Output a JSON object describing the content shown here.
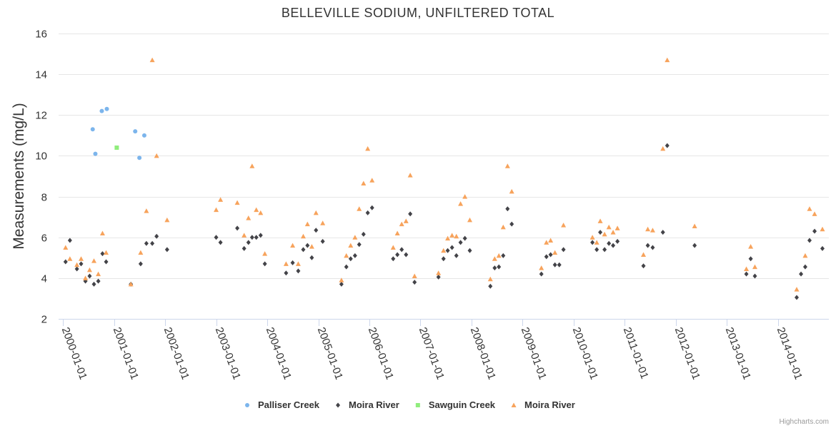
{
  "credits": "Highcharts.com",
  "chart_data": {
    "type": "scatter",
    "title": "BELLEVILLE SODIUM, UNFILTERED TOTAL",
    "ylabel": "Measurements (mg/L)",
    "xlabel": "",
    "ylim": [
      2,
      16
    ],
    "yticks": [
      2,
      4,
      6,
      8,
      10,
      12,
      14,
      16
    ],
    "xlim": [
      "1999-12-01",
      "2014-12-31"
    ],
    "xticks": [
      "2000-01-01",
      "2001-01-01",
      "2002-01-01",
      "2003-01-01",
      "2004-01-01",
      "2005-01-01",
      "2006-01-01",
      "2007-01-01",
      "2008-01-01",
      "2009-01-01",
      "2010-01-01",
      "2011-01-01",
      "2012-01-01",
      "2013-01-01",
      "2014-01-01"
    ],
    "grid": true,
    "legend_position": "bottom-center",
    "series": [
      {
        "name": "Palliser Creek",
        "color": "#7cb5ec",
        "marker": "circle",
        "points": [
          [
            "2000-08-01",
            11.3
          ],
          [
            "2000-08-20",
            10.1
          ],
          [
            "2000-10-05",
            12.2
          ],
          [
            "2000-11-10",
            12.3
          ],
          [
            "2001-06-01",
            11.2
          ],
          [
            "2001-07-01",
            9.9
          ],
          [
            "2001-08-05",
            11.0
          ]
        ]
      },
      {
        "name": "Moira River",
        "color": "#434348",
        "marker": "diamond",
        "points": [
          [
            "2000-01-20",
            4.8
          ],
          [
            "2000-02-20",
            5.85
          ],
          [
            "2000-04-10",
            4.45
          ],
          [
            "2000-05-10",
            4.7
          ],
          [
            "2000-06-10",
            3.85
          ],
          [
            "2000-07-10",
            4.1
          ],
          [
            "2000-08-10",
            3.7
          ],
          [
            "2000-09-10",
            3.85
          ],
          [
            "2000-10-10",
            5.2
          ],
          [
            "2000-11-05",
            4.8
          ],
          [
            "2001-05-01",
            3.7
          ],
          [
            "2001-07-10",
            4.7
          ],
          [
            "2001-08-20",
            5.7
          ],
          [
            "2001-10-01",
            5.7
          ],
          [
            "2001-11-01",
            6.05
          ],
          [
            "2002-01-15",
            5.4
          ],
          [
            "2003-01-01",
            6.0
          ],
          [
            "2003-02-01",
            5.75
          ],
          [
            "2003-06-01",
            6.45
          ],
          [
            "2003-07-20",
            5.45
          ],
          [
            "2003-08-20",
            5.75
          ],
          [
            "2003-09-15",
            6.0
          ],
          [
            "2003-10-15",
            6.0
          ],
          [
            "2003-11-15",
            6.1
          ],
          [
            "2003-12-15",
            4.7
          ],
          [
            "2004-05-15",
            4.25
          ],
          [
            "2004-07-01",
            4.75
          ],
          [
            "2004-08-10",
            4.35
          ],
          [
            "2004-09-15",
            5.4
          ],
          [
            "2004-10-15",
            5.6
          ],
          [
            "2004-11-15",
            5.0
          ],
          [
            "2004-12-15",
            6.35
          ],
          [
            "2005-02-01",
            5.8
          ],
          [
            "2005-06-15",
            3.7
          ],
          [
            "2005-07-20",
            4.55
          ],
          [
            "2005-08-20",
            4.95
          ],
          [
            "2005-09-20",
            5.1
          ],
          [
            "2005-10-20",
            5.65
          ],
          [
            "2005-11-20",
            6.15
          ],
          [
            "2005-12-20",
            7.2
          ],
          [
            "2006-01-20",
            7.45
          ],
          [
            "2006-06-20",
            4.95
          ],
          [
            "2006-07-20",
            5.15
          ],
          [
            "2006-08-20",
            5.4
          ],
          [
            "2006-09-20",
            5.15
          ],
          [
            "2006-10-20",
            7.15
          ],
          [
            "2006-11-20",
            3.8
          ],
          [
            "2007-05-10",
            4.05
          ],
          [
            "2007-06-15",
            4.95
          ],
          [
            "2007-07-15",
            5.35
          ],
          [
            "2007-08-15",
            5.5
          ],
          [
            "2007-09-15",
            5.1
          ],
          [
            "2007-10-15",
            5.75
          ],
          [
            "2007-11-15",
            5.95
          ],
          [
            "2007-12-20",
            5.35
          ],
          [
            "2008-05-15",
            3.6
          ],
          [
            "2008-06-15",
            4.5
          ],
          [
            "2008-07-15",
            4.55
          ],
          [
            "2008-08-15",
            5.1
          ],
          [
            "2008-09-15",
            7.4
          ],
          [
            "2008-10-15",
            6.65
          ],
          [
            "2009-05-15",
            4.2
          ],
          [
            "2009-06-20",
            5.05
          ],
          [
            "2009-07-20",
            5.15
          ],
          [
            "2009-08-20",
            4.65
          ],
          [
            "2009-09-20",
            4.65
          ],
          [
            "2009-10-20",
            5.4
          ],
          [
            "2010-05-15",
            5.75
          ],
          [
            "2010-06-15",
            5.4
          ],
          [
            "2010-07-10",
            6.25
          ],
          [
            "2010-08-10",
            5.4
          ],
          [
            "2010-09-10",
            5.7
          ],
          [
            "2010-10-10",
            5.6
          ],
          [
            "2010-11-10",
            5.8
          ],
          [
            "2011-05-15",
            4.6
          ],
          [
            "2011-06-15",
            5.6
          ],
          [
            "2011-07-20",
            5.5
          ],
          [
            "2011-10-01",
            6.25
          ],
          [
            "2011-11-01",
            10.5
          ],
          [
            "2012-05-15",
            5.6
          ],
          [
            "2013-05-20",
            4.2
          ],
          [
            "2013-06-20",
            4.95
          ],
          [
            "2013-07-20",
            4.1
          ],
          [
            "2014-05-15",
            3.05
          ],
          [
            "2014-06-15",
            4.2
          ],
          [
            "2014-07-15",
            4.55
          ],
          [
            "2014-08-15",
            5.85
          ],
          [
            "2014-09-20",
            6.3
          ],
          [
            "2014-11-15",
            5.45
          ]
        ]
      },
      {
        "name": "Sawguin Creek",
        "color": "#90ed7d",
        "marker": "square",
        "points": [
          [
            "2001-01-20",
            10.4
          ]
        ]
      },
      {
        "name": "Moira River",
        "color": "#f7a35c",
        "marker": "triangle",
        "points": [
          [
            "2000-01-20",
            5.5
          ],
          [
            "2000-02-20",
            4.95
          ],
          [
            "2000-04-10",
            4.65
          ],
          [
            "2000-05-10",
            4.95
          ],
          [
            "2000-06-10",
            4.0
          ],
          [
            "2000-07-10",
            4.4
          ],
          [
            "2000-08-10",
            4.85
          ],
          [
            "2000-09-10",
            4.2
          ],
          [
            "2000-10-10",
            6.2
          ],
          [
            "2000-11-05",
            5.25
          ],
          [
            "2001-05-01",
            3.7
          ],
          [
            "2001-07-10",
            5.25
          ],
          [
            "2001-08-20",
            7.3
          ],
          [
            "2001-10-01",
            14.7
          ],
          [
            "2001-11-01",
            10.0
          ],
          [
            "2002-01-15",
            6.85
          ],
          [
            "2003-01-01",
            7.35
          ],
          [
            "2003-02-01",
            7.85
          ],
          [
            "2003-06-01",
            7.7
          ],
          [
            "2003-07-20",
            6.1
          ],
          [
            "2003-08-20",
            6.95
          ],
          [
            "2003-09-15",
            9.5
          ],
          [
            "2003-10-15",
            7.35
          ],
          [
            "2003-11-15",
            7.2
          ],
          [
            "2003-12-15",
            5.2
          ],
          [
            "2004-05-15",
            4.7
          ],
          [
            "2004-07-01",
            5.6
          ],
          [
            "2004-08-10",
            4.7
          ],
          [
            "2004-09-15",
            6.05
          ],
          [
            "2004-10-15",
            6.65
          ],
          [
            "2004-11-15",
            5.55
          ],
          [
            "2004-12-15",
            7.2
          ],
          [
            "2005-02-01",
            6.7
          ],
          [
            "2005-06-15",
            3.9
          ],
          [
            "2005-07-20",
            5.1
          ],
          [
            "2005-08-20",
            5.6
          ],
          [
            "2005-09-20",
            6.0
          ],
          [
            "2005-10-20",
            7.4
          ],
          [
            "2005-11-20",
            8.65
          ],
          [
            "2005-12-20",
            10.35
          ],
          [
            "2006-01-20",
            8.8
          ],
          [
            "2006-06-20",
            5.5
          ],
          [
            "2006-07-20",
            6.2
          ],
          [
            "2006-08-20",
            6.65
          ],
          [
            "2006-09-20",
            6.8
          ],
          [
            "2006-10-20",
            9.05
          ],
          [
            "2006-11-20",
            4.1
          ],
          [
            "2007-05-10",
            4.25
          ],
          [
            "2007-06-15",
            5.35
          ],
          [
            "2007-07-15",
            5.95
          ],
          [
            "2007-08-15",
            6.1
          ],
          [
            "2007-09-15",
            6.05
          ],
          [
            "2007-10-15",
            7.65
          ],
          [
            "2007-11-15",
            8.0
          ],
          [
            "2007-12-20",
            6.85
          ],
          [
            "2008-05-15",
            3.95
          ],
          [
            "2008-06-15",
            4.95
          ],
          [
            "2008-07-15",
            5.1
          ],
          [
            "2008-08-15",
            6.5
          ],
          [
            "2008-09-15",
            9.5
          ],
          [
            "2008-10-15",
            8.25
          ],
          [
            "2009-05-15",
            4.5
          ],
          [
            "2009-06-20",
            5.75
          ],
          [
            "2009-07-20",
            5.85
          ],
          [
            "2009-08-20",
            5.25
          ],
          [
            "2009-10-20",
            6.6
          ],
          [
            "2010-05-15",
            6.0
          ],
          [
            "2010-06-15",
            5.75
          ],
          [
            "2010-07-10",
            6.8
          ],
          [
            "2010-08-10",
            6.15
          ],
          [
            "2010-09-10",
            6.5
          ],
          [
            "2010-10-10",
            6.25
          ],
          [
            "2010-11-10",
            6.45
          ],
          [
            "2011-05-15",
            5.15
          ],
          [
            "2011-06-15",
            6.4
          ],
          [
            "2011-07-20",
            6.35
          ],
          [
            "2011-10-01",
            10.35
          ],
          [
            "2011-11-01",
            14.7
          ],
          [
            "2012-05-15",
            6.55
          ],
          [
            "2013-05-20",
            4.45
          ],
          [
            "2013-06-20",
            5.55
          ],
          [
            "2013-07-20",
            4.55
          ],
          [
            "2014-05-15",
            3.45
          ],
          [
            "2014-07-15",
            5.1
          ],
          [
            "2014-08-15",
            7.4
          ],
          [
            "2014-09-20",
            7.15
          ],
          [
            "2014-11-15",
            6.4
          ]
        ]
      }
    ]
  }
}
